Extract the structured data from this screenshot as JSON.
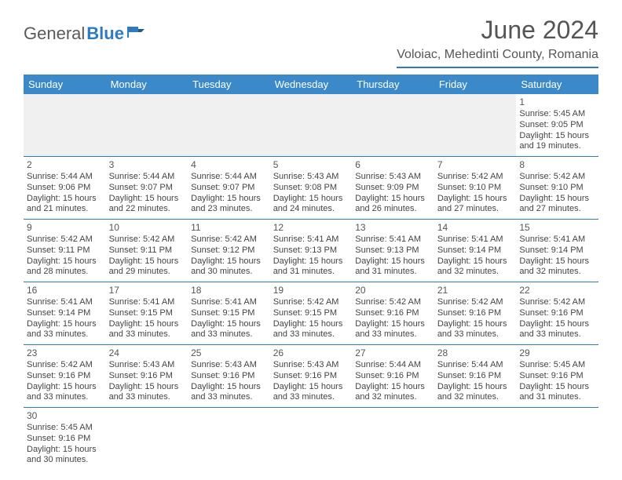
{
  "brand": {
    "general": "General",
    "blue": "Blue",
    "icon_fill": "#2f7bbf"
  },
  "title": "June 2024",
  "location": "Voloiac, Mehedinti County, Romania",
  "colors": {
    "header_bg": "#3b89c9",
    "header_text": "#ffffff",
    "divider": "#2f7bbf",
    "text": "#444444",
    "title_text": "#555555"
  },
  "typography": {
    "title_fontsize": 32,
    "location_fontsize": 16,
    "weekday_fontsize": 13,
    "cell_fontsize": 11,
    "daynum_fontsize": 12
  },
  "weekdays": [
    "Sunday",
    "Monday",
    "Tuesday",
    "Wednesday",
    "Thursday",
    "Friday",
    "Saturday"
  ],
  "weeks": [
    [
      null,
      null,
      null,
      null,
      null,
      null,
      {
        "n": "1",
        "sr": "Sunrise: 5:45 AM",
        "ss": "Sunset: 9:05 PM",
        "d1": "Daylight: 15 hours",
        "d2": "and 19 minutes."
      }
    ],
    [
      {
        "n": "2",
        "sr": "Sunrise: 5:44 AM",
        "ss": "Sunset: 9:06 PM",
        "d1": "Daylight: 15 hours",
        "d2": "and 21 minutes."
      },
      {
        "n": "3",
        "sr": "Sunrise: 5:44 AM",
        "ss": "Sunset: 9:07 PM",
        "d1": "Daylight: 15 hours",
        "d2": "and 22 minutes."
      },
      {
        "n": "4",
        "sr": "Sunrise: 5:44 AM",
        "ss": "Sunset: 9:07 PM",
        "d1": "Daylight: 15 hours",
        "d2": "and 23 minutes."
      },
      {
        "n": "5",
        "sr": "Sunrise: 5:43 AM",
        "ss": "Sunset: 9:08 PM",
        "d1": "Daylight: 15 hours",
        "d2": "and 24 minutes."
      },
      {
        "n": "6",
        "sr": "Sunrise: 5:43 AM",
        "ss": "Sunset: 9:09 PM",
        "d1": "Daylight: 15 hours",
        "d2": "and 26 minutes."
      },
      {
        "n": "7",
        "sr": "Sunrise: 5:42 AM",
        "ss": "Sunset: 9:10 PM",
        "d1": "Daylight: 15 hours",
        "d2": "and 27 minutes."
      },
      {
        "n": "8",
        "sr": "Sunrise: 5:42 AM",
        "ss": "Sunset: 9:10 PM",
        "d1": "Daylight: 15 hours",
        "d2": "and 27 minutes."
      }
    ],
    [
      {
        "n": "9",
        "sr": "Sunrise: 5:42 AM",
        "ss": "Sunset: 9:11 PM",
        "d1": "Daylight: 15 hours",
        "d2": "and 28 minutes."
      },
      {
        "n": "10",
        "sr": "Sunrise: 5:42 AM",
        "ss": "Sunset: 9:11 PM",
        "d1": "Daylight: 15 hours",
        "d2": "and 29 minutes."
      },
      {
        "n": "11",
        "sr": "Sunrise: 5:42 AM",
        "ss": "Sunset: 9:12 PM",
        "d1": "Daylight: 15 hours",
        "d2": "and 30 minutes."
      },
      {
        "n": "12",
        "sr": "Sunrise: 5:41 AM",
        "ss": "Sunset: 9:13 PM",
        "d1": "Daylight: 15 hours",
        "d2": "and 31 minutes."
      },
      {
        "n": "13",
        "sr": "Sunrise: 5:41 AM",
        "ss": "Sunset: 9:13 PM",
        "d1": "Daylight: 15 hours",
        "d2": "and 31 minutes."
      },
      {
        "n": "14",
        "sr": "Sunrise: 5:41 AM",
        "ss": "Sunset: 9:14 PM",
        "d1": "Daylight: 15 hours",
        "d2": "and 32 minutes."
      },
      {
        "n": "15",
        "sr": "Sunrise: 5:41 AM",
        "ss": "Sunset: 9:14 PM",
        "d1": "Daylight: 15 hours",
        "d2": "and 32 minutes."
      }
    ],
    [
      {
        "n": "16",
        "sr": "Sunrise: 5:41 AM",
        "ss": "Sunset: 9:14 PM",
        "d1": "Daylight: 15 hours",
        "d2": "and 33 minutes."
      },
      {
        "n": "17",
        "sr": "Sunrise: 5:41 AM",
        "ss": "Sunset: 9:15 PM",
        "d1": "Daylight: 15 hours",
        "d2": "and 33 minutes."
      },
      {
        "n": "18",
        "sr": "Sunrise: 5:41 AM",
        "ss": "Sunset: 9:15 PM",
        "d1": "Daylight: 15 hours",
        "d2": "and 33 minutes."
      },
      {
        "n": "19",
        "sr": "Sunrise: 5:42 AM",
        "ss": "Sunset: 9:15 PM",
        "d1": "Daylight: 15 hours",
        "d2": "and 33 minutes."
      },
      {
        "n": "20",
        "sr": "Sunrise: 5:42 AM",
        "ss": "Sunset: 9:16 PM",
        "d1": "Daylight: 15 hours",
        "d2": "and 33 minutes."
      },
      {
        "n": "21",
        "sr": "Sunrise: 5:42 AM",
        "ss": "Sunset: 9:16 PM",
        "d1": "Daylight: 15 hours",
        "d2": "and 33 minutes."
      },
      {
        "n": "22",
        "sr": "Sunrise: 5:42 AM",
        "ss": "Sunset: 9:16 PM",
        "d1": "Daylight: 15 hours",
        "d2": "and 33 minutes."
      }
    ],
    [
      {
        "n": "23",
        "sr": "Sunrise: 5:42 AM",
        "ss": "Sunset: 9:16 PM",
        "d1": "Daylight: 15 hours",
        "d2": "and 33 minutes."
      },
      {
        "n": "24",
        "sr": "Sunrise: 5:43 AM",
        "ss": "Sunset: 9:16 PM",
        "d1": "Daylight: 15 hours",
        "d2": "and 33 minutes."
      },
      {
        "n": "25",
        "sr": "Sunrise: 5:43 AM",
        "ss": "Sunset: 9:16 PM",
        "d1": "Daylight: 15 hours",
        "d2": "and 33 minutes."
      },
      {
        "n": "26",
        "sr": "Sunrise: 5:43 AM",
        "ss": "Sunset: 9:16 PM",
        "d1": "Daylight: 15 hours",
        "d2": "and 33 minutes."
      },
      {
        "n": "27",
        "sr": "Sunrise: 5:44 AM",
        "ss": "Sunset: 9:16 PM",
        "d1": "Daylight: 15 hours",
        "d2": "and 32 minutes."
      },
      {
        "n": "28",
        "sr": "Sunrise: 5:44 AM",
        "ss": "Sunset: 9:16 PM",
        "d1": "Daylight: 15 hours",
        "d2": "and 32 minutes."
      },
      {
        "n": "29",
        "sr": "Sunrise: 5:45 AM",
        "ss": "Sunset: 9:16 PM",
        "d1": "Daylight: 15 hours",
        "d2": "and 31 minutes."
      }
    ],
    [
      {
        "n": "30",
        "sr": "Sunrise: 5:45 AM",
        "ss": "Sunset: 9:16 PM",
        "d1": "Daylight: 15 hours",
        "d2": "and 30 minutes."
      },
      null,
      null,
      null,
      null,
      null,
      null
    ]
  ]
}
